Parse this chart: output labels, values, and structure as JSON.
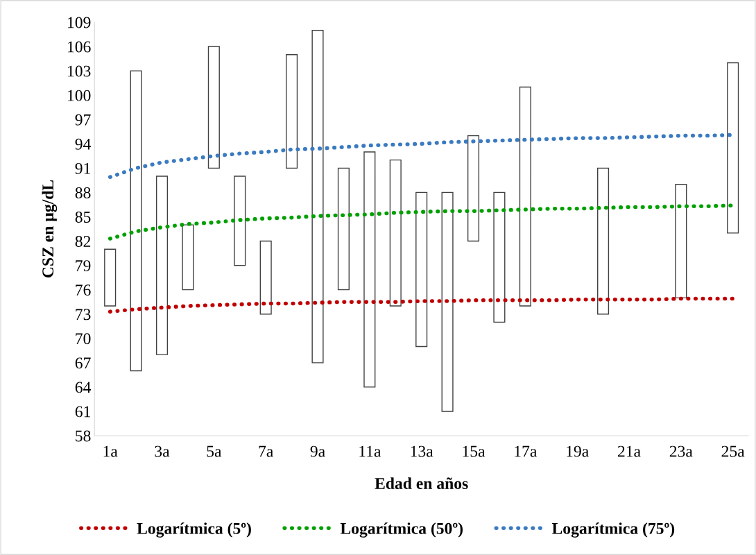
{
  "chart_data": {
    "type": "bar",
    "xlabel": "Edad en años",
    "ylabel": "CSZ en µg/dL",
    "categories": [
      "1a",
      null,
      "3a",
      null,
      "5a",
      null,
      "7a",
      null,
      "9a",
      null,
      "11a",
      null,
      "13a",
      null,
      "15a",
      null,
      "17a",
      null,
      "19a",
      null,
      "21a",
      null,
      "23a",
      null,
      "25a"
    ],
    "ylim": [
      58,
      109
    ],
    "yticks": [
      58,
      61,
      64,
      67,
      70,
      73,
      76,
      79,
      82,
      85,
      88,
      91,
      94,
      97,
      100,
      103,
      106,
      109
    ],
    "grid": false,
    "legend": "bottom",
    "series": [
      {
        "color": "#ffffff",
        "base": [
          74,
          66,
          68,
          76,
          91,
          79,
          73,
          91,
          67,
          76,
          64,
          74,
          69,
          61,
          82,
          72,
          74,
          null,
          null,
          73,
          null,
          null,
          75,
          null,
          83
        ],
        "values": [
          7,
          37,
          22,
          8,
          15,
          11,
          9,
          14,
          41,
          15,
          29,
          18,
          19,
          27,
          13,
          16,
          27,
          null,
          null,
          18,
          null,
          null,
          14,
          null,
          21
        ]
      },
      {
        "type": "line",
        "name": "Logarítmica (5º)",
        "color": "#c00000",
        "line_style": "dotted",
        "marker": "none",
        "values": [
          73.3,
          73.6,
          73.8,
          74.0,
          74.1,
          74.2,
          74.3,
          74.3,
          74.4,
          74.5,
          74.5,
          74.5,
          74.6,
          74.6,
          74.7,
          74.7,
          74.7,
          74.7,
          74.8,
          74.8,
          74.8,
          74.8,
          74.9,
          74.9,
          74.9
        ]
      },
      {
        "type": "line",
        "name": "Logarítmica (50º)",
        "color": "#00a000",
        "line_style": "dotted",
        "marker": "none",
        "values": [
          82.3,
          83.2,
          83.7,
          84.1,
          84.3,
          84.6,
          84.8,
          84.9,
          85.1,
          85.2,
          85.3,
          85.5,
          85.6,
          85.7,
          85.7,
          85.8,
          85.9,
          86.0,
          86.0,
          86.1,
          86.2,
          86.2,
          86.3,
          86.3,
          86.4
        ]
      },
      {
        "type": "line",
        "name": "Logarítmica (75º)",
        "color": "#3a7ac0",
        "line_style": "dotted",
        "marker": "none",
        "values": [
          89.9,
          91.0,
          91.7,
          92.1,
          92.5,
          92.8,
          93.0,
          93.3,
          93.4,
          93.6,
          93.8,
          93.9,
          94.0,
          94.2,
          94.3,
          94.4,
          94.5,
          94.6,
          94.7,
          94.7,
          94.8,
          94.9,
          95.0,
          95.0,
          95.1
        ]
      }
    ]
  }
}
